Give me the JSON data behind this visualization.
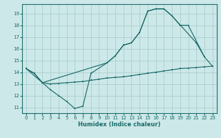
{
  "xlabel": "Humidex (Indice chaleur)",
  "bg_color": "#cde8e8",
  "grid_color": "#aacece",
  "line_color": "#1a6b6b",
  "xticks": [
    0,
    1,
    2,
    3,
    4,
    5,
    6,
    7,
    8,
    9,
    10,
    11,
    12,
    13,
    14,
    15,
    16,
    17,
    18,
    19,
    20,
    21,
    22,
    23
  ],
  "yticks": [
    11,
    12,
    13,
    14,
    15,
    16,
    17,
    18,
    19
  ],
  "xlim": [
    -0.5,
    23.5
  ],
  "ylim": [
    10.5,
    19.8
  ],
  "lineA_x": [
    0,
    1,
    2,
    3,
    4,
    5,
    6,
    7,
    8,
    10,
    11,
    12,
    13,
    14,
    15,
    16,
    17,
    18,
    21,
    22
  ],
  "lineA_y": [
    14.3,
    13.9,
    13.1,
    12.5,
    12.0,
    11.5,
    10.9,
    11.1,
    13.9,
    14.8,
    15.4,
    16.3,
    16.5,
    17.4,
    19.2,
    19.4,
    19.4,
    18.8,
    16.5,
    15.3
  ],
  "lineB_x": [
    0,
    1,
    2,
    3,
    4,
    5,
    6,
    7,
    8,
    9,
    10,
    11,
    12,
    13,
    14,
    15,
    16,
    17,
    18,
    19,
    20,
    21,
    22,
    23
  ],
  "lineB_y": [
    14.3,
    13.9,
    13.1,
    13.0,
    13.05,
    13.1,
    13.15,
    13.2,
    13.3,
    13.4,
    13.5,
    13.55,
    13.6,
    13.7,
    13.8,
    13.9,
    14.0,
    14.1,
    14.2,
    14.3,
    14.35,
    14.4,
    14.45,
    14.5
  ],
  "lineC_x": [
    0,
    2,
    10,
    11,
    12,
    13,
    14,
    15,
    16,
    17,
    18,
    19,
    20,
    22,
    23
  ],
  "lineC_y": [
    14.3,
    13.1,
    14.8,
    15.4,
    16.3,
    16.5,
    17.4,
    19.2,
    19.4,
    19.4,
    18.8,
    18.0,
    18.0,
    15.3,
    14.5
  ]
}
